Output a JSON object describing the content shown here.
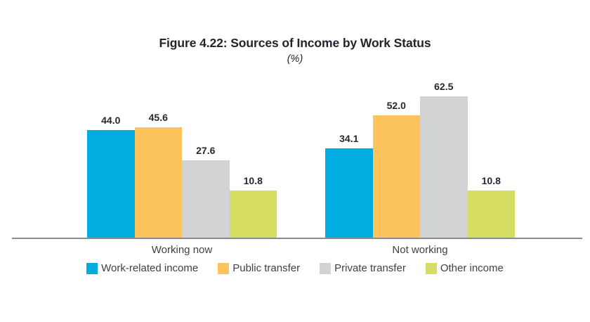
{
  "chart_data": {
    "type": "bar",
    "title": "Figure 4.22: Sources of Income by Work Status",
    "subtitle": "(%)",
    "unit": "%",
    "categories": [
      "Working now",
      "Not working"
    ],
    "series": [
      {
        "name": "Work-related income",
        "color": "#00ACE0",
        "values": [
          44.0,
          34.1
        ],
        "labels": [
          "44.0",
          "34.1"
        ]
      },
      {
        "name": "Public transfer",
        "color": "#FDC35D",
        "values": [
          45.6,
          52.0
        ],
        "labels": [
          "45.6",
          "52.0"
        ]
      },
      {
        "name": "Private transfer",
        "color": "#D1D3D4",
        "values": [
          27.6,
          62.5
        ],
        "labels": [
          "27.6",
          "62.5"
        ]
      },
      {
        "name": "Other income",
        "color": "#D5DE63",
        "values": [
          10.8,
          10.8
        ],
        "labels": [
          "10.8",
          "10.8"
        ]
      }
    ],
    "value_labels_shown": true,
    "grid": false,
    "y_axis_shown": false,
    "axis_line_color": "#8A8D8F",
    "legend_position": "bottom"
  }
}
